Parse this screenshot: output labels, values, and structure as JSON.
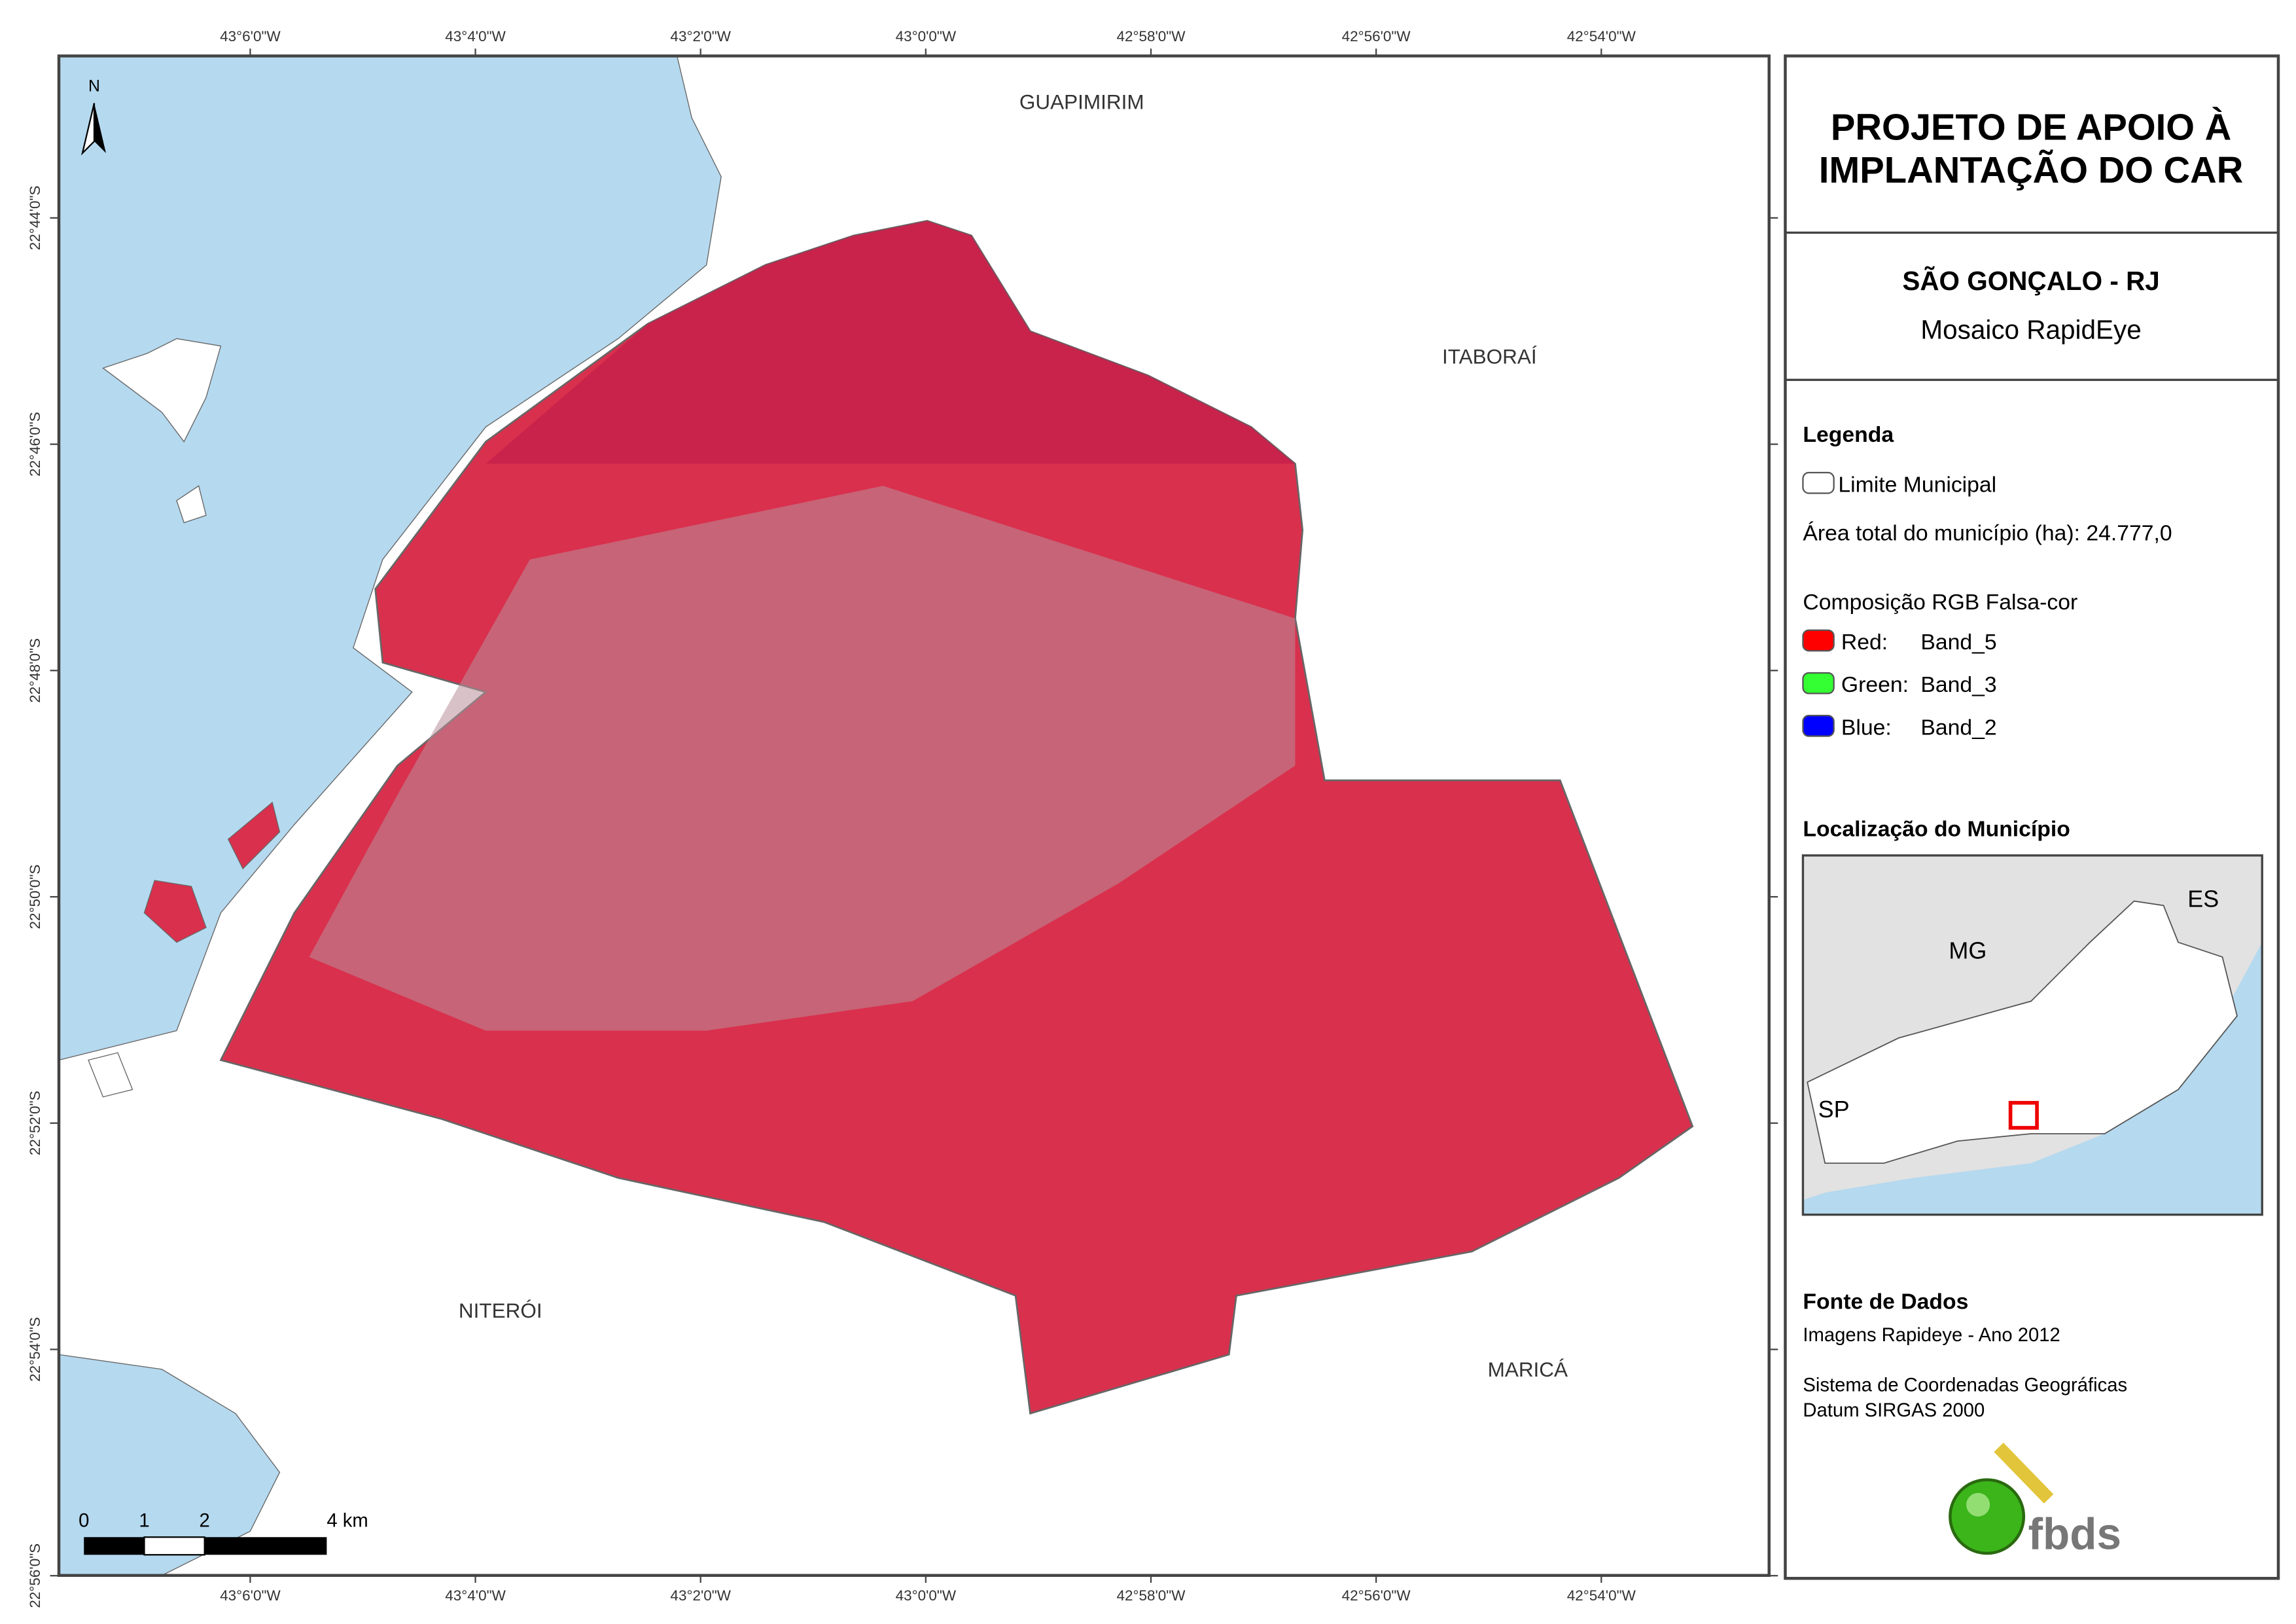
{
  "map": {
    "north": "N",
    "lon_ticks": [
      "43°6'0\"W",
      "43°4'0\"W",
      "43°2'0\"W",
      "43°0'0\"W",
      "42°58'0\"W",
      "42°56'0\"W",
      "42°54'0\"W"
    ],
    "lat_ticks": [
      "22°44'0\"S",
      "22°46'0\"S",
      "22°48'0\"S",
      "22°50'0\"S",
      "22°52'0\"S",
      "22°54'0\"S",
      "22°56'0\"S"
    ],
    "places": {
      "guapimirim": "GUAPIMIRIM",
      "itaborai": "ITABORAÍ",
      "niteroi": "NITERÓI",
      "marica": "MARICÁ"
    },
    "scale_labels": [
      "0",
      "1",
      "2",
      "4 km"
    ]
  },
  "panel": {
    "title": [
      "PROJETO DE APOIO À",
      "IMPLANTAÇÃO DO CAR"
    ],
    "subtitle": "SÃO GONÇALO - RJ",
    "subtitle2": "Mosaico RapidEye",
    "legend": {
      "title": "Legenda",
      "boundary": "Limite Municipal",
      "area": "Área total do município (ha): 24.777,0",
      "rgb_title": "Composição RGB Falsa-cor",
      "bands": [
        {
          "label": "Red:",
          "band": "Band_5"
        },
        {
          "label": "Green:",
          "band": "Band_3"
        },
        {
          "label": "Blue:",
          "band": "Band_2"
        }
      ]
    },
    "location": {
      "title": "Localização do Município",
      "mg": "MG",
      "es": "ES",
      "sp": "SP"
    },
    "source": {
      "title": "Fonte de Dados",
      "lines": [
        "Imagens Rapideye - Ano 2012",
        "Sistema de Coordenadas Geográficas",
        "Datum SIRGAS 2000"
      ]
    },
    "logo": "fbds"
  }
}
